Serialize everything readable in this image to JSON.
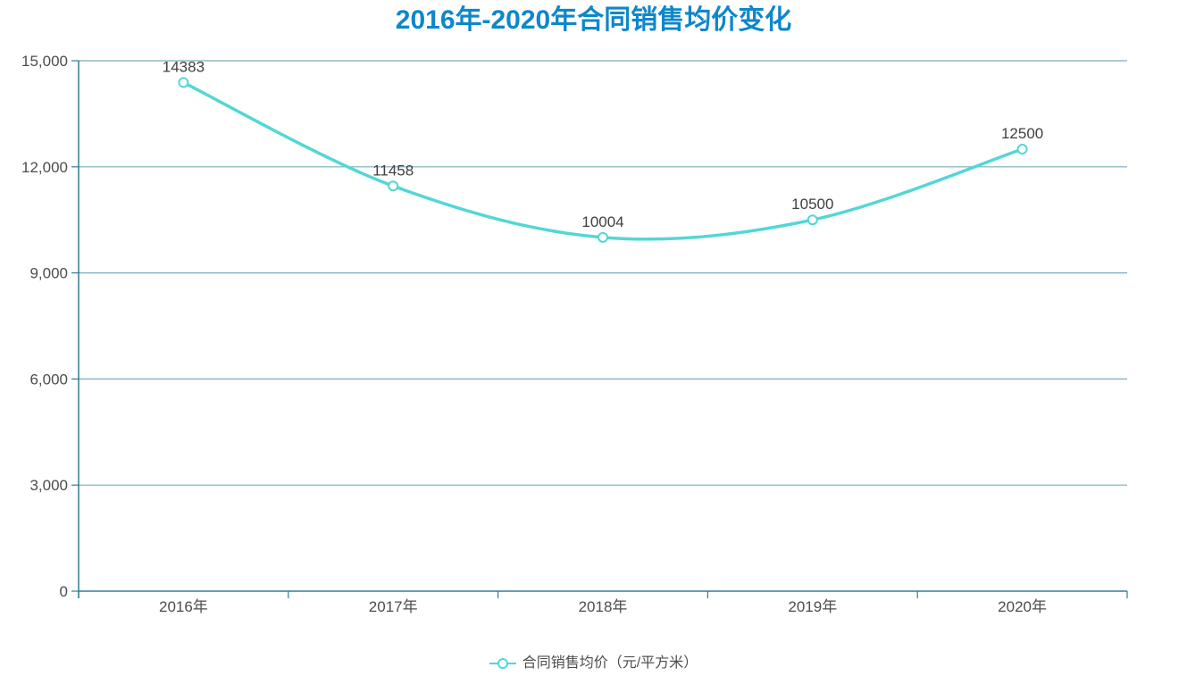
{
  "page": {
    "title": "2016年-2020年合同销售均价变化"
  },
  "legend": {
    "label": "合同销售均价（元/平方米）",
    "marker": "hollow-circle-on-line"
  },
  "chart_data": {
    "type": "line",
    "title": "2016年-2020年合同销售均价变化",
    "categories": [
      "2016年",
      "2017年",
      "2018年",
      "2019年",
      "2020年"
    ],
    "series": [
      {
        "name": "合同销售均价（元/平方米）",
        "values": [
          14383,
          11458,
          10004,
          10500,
          12500
        ]
      }
    ],
    "xlabel": "",
    "ylabel": "",
    "ylim": [
      0,
      15000
    ],
    "y_tick_interval": 3000,
    "y_tick_labels": [
      "0",
      "3,000",
      "6,000",
      "9,000",
      "12,000",
      "15,000"
    ],
    "grid": true,
    "smooth": true,
    "marker": "hollow-circle",
    "data_labels_shown": true,
    "legend_position": "bottom"
  },
  "colors": {
    "title": "#0e87cb",
    "line": "#54d6d6",
    "axis": "#2e7e92",
    "gridline": "#78adbc",
    "tick_text": "#4d4d4d",
    "data_label_text": "#404040"
  }
}
